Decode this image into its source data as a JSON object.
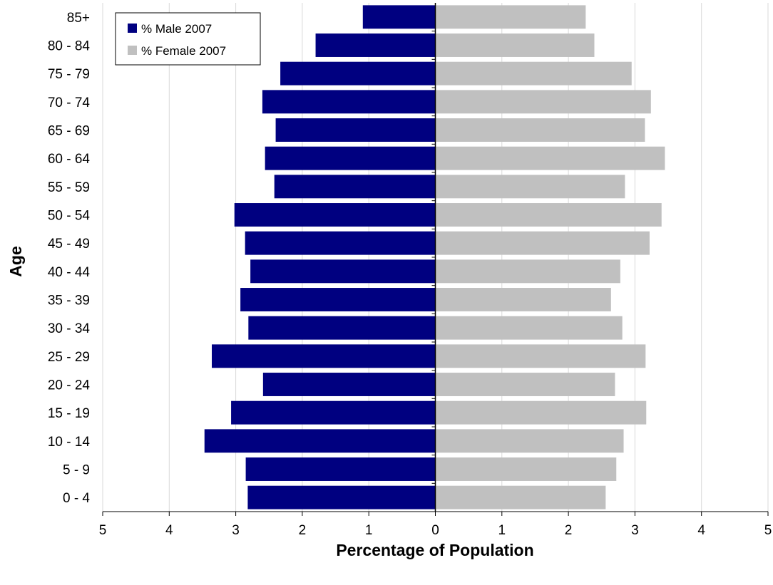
{
  "chart_data": {
    "type": "bar",
    "orientation": "horizontal-population-pyramid",
    "title": "",
    "xlabel": "Percentage of Population",
    "ylabel": "Age",
    "categories": [
      "0 - 4",
      "5 - 9",
      "10 - 14",
      "15 - 19",
      "20 - 24",
      "25 - 29",
      "30 - 34",
      "35 - 39",
      "40 - 44",
      "45 - 49",
      "50 - 54",
      "55 - 59",
      "60 - 64",
      "65 - 69",
      "70 - 74",
      "75 - 79",
      "80 - 84",
      "85+"
    ],
    "series": [
      {
        "name": "% Male 2007",
        "side": "left",
        "color": "#000080",
        "values": [
          2.82,
          2.85,
          3.47,
          3.07,
          2.59,
          3.36,
          2.81,
          2.93,
          2.78,
          2.86,
          3.02,
          2.42,
          2.56,
          2.4,
          2.6,
          2.33,
          1.8,
          1.09
        ]
      },
      {
        "name": "% Female 2007",
        "side": "right",
        "color": "#C0C0C0",
        "values": [
          2.56,
          2.72,
          2.83,
          3.17,
          2.7,
          3.16,
          2.81,
          2.64,
          2.78,
          3.22,
          3.4,
          2.85,
          3.45,
          3.15,
          3.24,
          2.95,
          2.39,
          2.26
        ]
      }
    ],
    "xlim": [
      -5,
      5
    ],
    "xticks": [
      -5,
      -4,
      -3,
      -2,
      -1,
      0,
      1,
      2,
      3,
      4,
      5
    ],
    "xtick_labels": [
      "5",
      "4",
      "3",
      "2",
      "1",
      "0",
      "1",
      "2",
      "3",
      "4",
      "5"
    ],
    "grid": "vertical",
    "grid_color": "#D9D9D9",
    "legend": "top-left"
  }
}
